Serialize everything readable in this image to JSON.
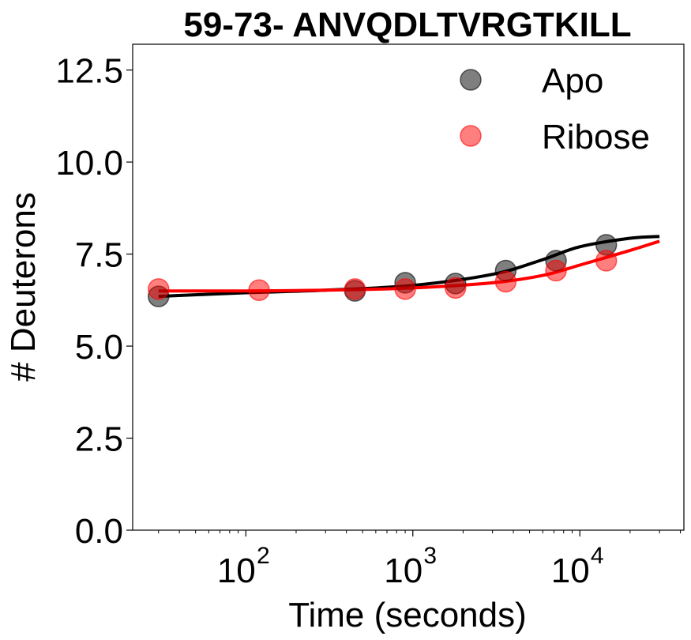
{
  "chart_data": {
    "type": "scatter",
    "title": "59-73- ANVQDLTVRGTKILL",
    "xlabel": "Time (seconds)",
    "ylabel": "# Deuterons",
    "xscale": "log",
    "xlim": [
      21,
      42000
    ],
    "ylim": [
      0,
      13.2
    ],
    "yticks": [
      0.0,
      2.5,
      5.0,
      7.5,
      10.0,
      12.5
    ],
    "ytick_labels": [
      "0.0",
      "2.5",
      "5.0",
      "7.5",
      "10.0",
      "12.5"
    ],
    "xticks": [
      100,
      1000,
      10000
    ],
    "xtick_labels": [
      {
        "base": "10",
        "exp": "2"
      },
      {
        "base": "10",
        "exp": "3"
      },
      {
        "base": "10",
        "exp": "4"
      }
    ],
    "legend_position": "top-right",
    "grid": false,
    "series": [
      {
        "name": "Apo",
        "color": "#000000",
        "marker_alpha": 0.5,
        "x": [
          30,
          450,
          900,
          1800,
          3600,
          7200,
          14400
        ],
        "y": [
          6.35,
          6.5,
          6.72,
          6.7,
          7.05,
          7.32,
          7.75
        ],
        "fit_x": [
          30,
          100,
          300,
          1000,
          3000,
          6000,
          10000,
          20000,
          30000
        ],
        "fit_y": [
          6.35,
          6.45,
          6.52,
          6.65,
          6.95,
          7.35,
          7.7,
          7.93,
          7.98
        ]
      },
      {
        "name": "Ribose",
        "color": "#ff0000",
        "marker_alpha": 0.5,
        "x": [
          30,
          120,
          450,
          900,
          1800,
          3600,
          7200,
          14400
        ],
        "y": [
          6.55,
          6.52,
          6.55,
          6.55,
          6.58,
          6.75,
          7.05,
          7.32
        ],
        "fit_x": [
          30,
          100,
          300,
          1000,
          3000,
          6000,
          10000,
          20000,
          30000
        ],
        "fit_y": [
          6.5,
          6.5,
          6.52,
          6.58,
          6.72,
          6.92,
          7.2,
          7.6,
          7.85
        ]
      }
    ]
  }
}
